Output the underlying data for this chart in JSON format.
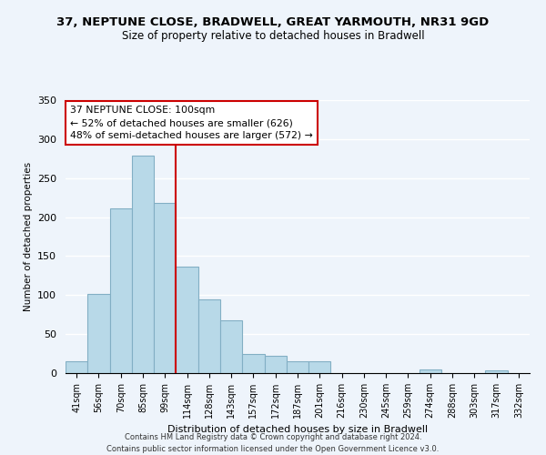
{
  "title": "37, NEPTUNE CLOSE, BRADWELL, GREAT YARMOUTH, NR31 9GD",
  "subtitle": "Size of property relative to detached houses in Bradwell",
  "xlabel": "Distribution of detached houses by size in Bradwell",
  "ylabel": "Number of detached properties",
  "bar_labels": [
    "41sqm",
    "56sqm",
    "70sqm",
    "85sqm",
    "99sqm",
    "114sqm",
    "128sqm",
    "143sqm",
    "157sqm",
    "172sqm",
    "187sqm",
    "201sqm",
    "216sqm",
    "230sqm",
    "245sqm",
    "259sqm",
    "274sqm",
    "288sqm",
    "303sqm",
    "317sqm",
    "332sqm"
  ],
  "bar_values": [
    15,
    101,
    211,
    279,
    218,
    136,
    95,
    68,
    25,
    22,
    15,
    15,
    0,
    0,
    0,
    0,
    5,
    0,
    0,
    3,
    0
  ],
  "bar_color": "#b8d9e8",
  "bar_edge_color": "#82afc4",
  "vline_x": 4.5,
  "vline_color": "#cc0000",
  "annotation_line1": "37 NEPTUNE CLOSE: 100sqm",
  "annotation_line2": "← 52% of detached houses are smaller (626)",
  "annotation_line3": "48% of semi-detached houses are larger (572) →",
  "annotation_box_color": "#ffffff",
  "annotation_box_edge": "#cc0000",
  "ylim": [
    0,
    350
  ],
  "yticks": [
    0,
    50,
    100,
    150,
    200,
    250,
    300,
    350
  ],
  "footer_line1": "Contains HM Land Registry data © Crown copyright and database right 2024.",
  "footer_line2": "Contains public sector information licensed under the Open Government Licence v3.0.",
  "bg_color": "#eef4fb"
}
